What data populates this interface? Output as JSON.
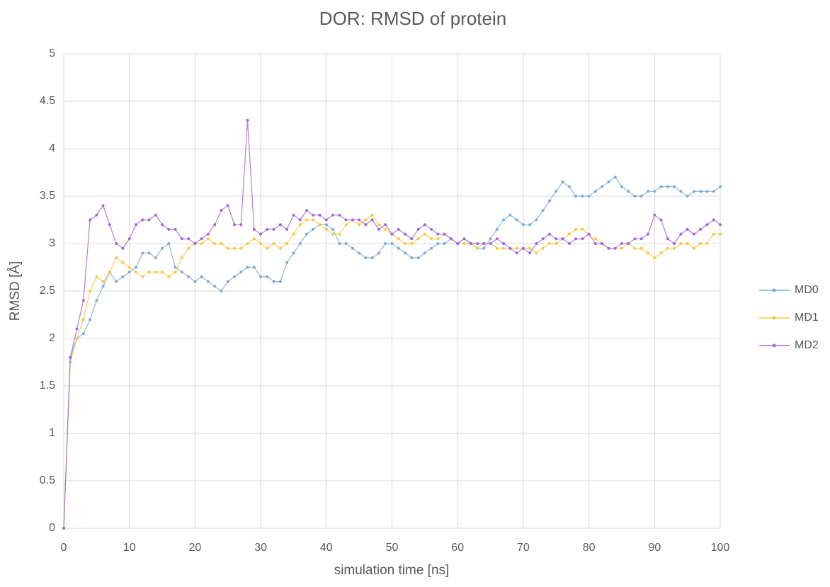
{
  "chart_data": {
    "type": "line",
    "title": "DOR: RMSD of protein",
    "xlabel": "simulation time [ns]",
    "ylabel": "RMSD [Å]",
    "x": [
      0,
      1,
      2,
      3,
      4,
      5,
      6,
      7,
      8,
      9,
      10,
      11,
      12,
      13,
      14,
      15,
      16,
      17,
      18,
      19,
      20,
      21,
      22,
      23,
      24,
      25,
      26,
      27,
      28,
      29,
      30,
      31,
      32,
      33,
      34,
      35,
      36,
      37,
      38,
      39,
      40,
      41,
      42,
      43,
      44,
      45,
      46,
      47,
      48,
      49,
      50,
      51,
      52,
      53,
      54,
      55,
      56,
      57,
      58,
      59,
      60,
      61,
      62,
      63,
      64,
      65,
      66,
      67,
      68,
      69,
      70,
      71,
      72,
      73,
      74,
      75,
      76,
      77,
      78,
      79,
      80,
      81,
      82,
      83,
      84,
      85,
      86,
      87,
      88,
      89,
      90,
      91,
      92,
      93,
      94,
      95,
      96,
      97,
      98,
      99,
      100
    ],
    "series": [
      {
        "name": "MD0",
        "color": "#7aaad6",
        "values": [
          0,
          1.8,
          2.0,
          2.05,
          2.2,
          2.4,
          2.55,
          2.7,
          2.6,
          2.65,
          2.7,
          2.75,
          2.9,
          2.9,
          2.85,
          2.95,
          3.0,
          2.75,
          2.7,
          2.65,
          2.6,
          2.65,
          2.6,
          2.55,
          2.5,
          2.6,
          2.65,
          2.7,
          2.75,
          2.75,
          2.65,
          2.65,
          2.6,
          2.6,
          2.8,
          2.9,
          3.0,
          3.1,
          3.15,
          3.2,
          3.2,
          3.15,
          3.0,
          3.0,
          2.95,
          2.9,
          2.85,
          2.85,
          2.9,
          3.0,
          3.0,
          2.95,
          2.9,
          2.85,
          2.85,
          2.9,
          2.95,
          3.0,
          3.0,
          3.05,
          3.0,
          3.05,
          3.0,
          2.95,
          2.95,
          3.05,
          3.15,
          3.25,
          3.3,
          3.25,
          3.2,
          3.2,
          3.25,
          3.35,
          3.45,
          3.55,
          3.65,
          3.6,
          3.5,
          3.5,
          3.5,
          3.55,
          3.6,
          3.65,
          3.7,
          3.6,
          3.55,
          3.5,
          3.5,
          3.55,
          3.55,
          3.6,
          3.6,
          3.6,
          3.55,
          3.5,
          3.55,
          3.55,
          3.55,
          3.55,
          3.6
        ]
      },
      {
        "name": "MD1",
        "color": "#f5c842",
        "values": [
          0,
          1.75,
          2.0,
          2.2,
          2.5,
          2.65,
          2.6,
          2.7,
          2.85,
          2.8,
          2.75,
          2.7,
          2.65,
          2.7,
          2.7,
          2.7,
          2.65,
          2.7,
          2.85,
          2.95,
          3.0,
          3.0,
          3.05,
          3.0,
          3.0,
          2.95,
          2.95,
          2.95,
          3.0,
          3.05,
          3.0,
          2.95,
          3.0,
          2.95,
          3.0,
          3.1,
          3.2,
          3.25,
          3.25,
          3.2,
          3.15,
          3.1,
          3.1,
          3.2,
          3.25,
          3.2,
          3.25,
          3.3,
          3.2,
          3.15,
          3.1,
          3.05,
          3.0,
          3.0,
          3.05,
          3.1,
          3.05,
          3.05,
          3.1,
          3.05,
          3.0,
          3.0,
          3.0,
          2.95,
          3.0,
          3.0,
          2.95,
          2.95,
          2.95,
          2.95,
          2.95,
          2.95,
          2.9,
          2.95,
          3.0,
          3.0,
          3.05,
          3.1,
          3.15,
          3.15,
          3.1,
          3.05,
          3.0,
          2.95,
          2.95,
          2.95,
          3.0,
          2.95,
          2.95,
          2.9,
          2.85,
          2.9,
          2.95,
          2.95,
          3.0,
          3.0,
          2.95,
          3.0,
          3.0,
          3.1,
          3.1
        ]
      },
      {
        "name": "MD2",
        "color": "#a566d8",
        "values": [
          0,
          1.8,
          2.1,
          2.4,
          3.25,
          3.3,
          3.4,
          3.2,
          3.0,
          2.95,
          3.05,
          3.2,
          3.25,
          3.25,
          3.3,
          3.2,
          3.15,
          3.15,
          3.05,
          3.05,
          3.0,
          3.05,
          3.1,
          3.2,
          3.35,
          3.4,
          3.2,
          3.2,
          4.3,
          3.15,
          3.1,
          3.15,
          3.15,
          3.2,
          3.15,
          3.3,
          3.25,
          3.35,
          3.3,
          3.3,
          3.25,
          3.3,
          3.3,
          3.25,
          3.25,
          3.25,
          3.2,
          3.25,
          3.15,
          3.2,
          3.1,
          3.15,
          3.1,
          3.05,
          3.15,
          3.2,
          3.15,
          3.1,
          3.1,
          3.05,
          3.0,
          3.05,
          3.0,
          3.0,
          3.0,
          3.0,
          3.05,
          3.0,
          2.95,
          2.9,
          2.95,
          2.9,
          3.0,
          3.05,
          3.1,
          3.05,
          3.05,
          3.0,
          3.05,
          3.05,
          3.1,
          3.0,
          3.0,
          2.95,
          2.95,
          3.0,
          3.0,
          3.05,
          3.05,
          3.1,
          3.3,
          3.25,
          3.05,
          3.0,
          3.1,
          3.15,
          3.1,
          3.15,
          3.2,
          3.25,
          3.2
        ]
      }
    ],
    "xlim": [
      0,
      100
    ],
    "xticks": [
      0,
      10,
      20,
      30,
      40,
      50,
      60,
      70,
      80,
      90,
      100
    ],
    "ylim": [
      0,
      5
    ],
    "yticks": [
      0,
      0.5,
      1,
      1.5,
      2,
      2.5,
      3,
      3.5,
      4,
      4.5,
      5
    ],
    "grid": true,
    "legend": "right"
  }
}
